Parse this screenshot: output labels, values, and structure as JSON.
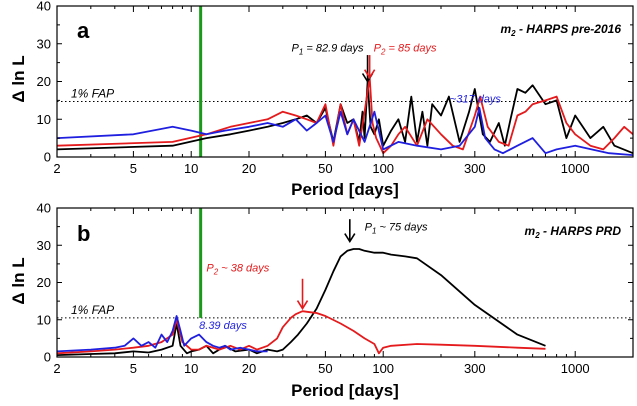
{
  "colors": {
    "black": "#000000",
    "red": "#e41a1c",
    "blue": "#1f1fe0",
    "green": "#1a9a1a",
    "frame": "#000000"
  },
  "chart_data": [
    {
      "panel": "a",
      "type": "line",
      "title": "m_2 - HARPS pre-2016",
      "title_main": "m",
      "title_sub": "2",
      "title_rest": " - HARPS pre-2016",
      "xlabel": "Period [days]",
      "ylabel": "Δ ln L",
      "x_scale": "log",
      "xlim": [
        2,
        2000
      ],
      "ylim": [
        0,
        40
      ],
      "xticks": [
        2,
        5,
        10,
        20,
        50,
        100,
        300,
        1000
      ],
      "yticks": [
        0,
        10,
        20,
        30,
        40
      ],
      "fap": {
        "label": "1% FAP",
        "value": 14.7
      },
      "marker_line": {
        "x": 11.2,
        "y": [
          0,
          40
        ],
        "color": "green"
      },
      "annotations": [
        {
          "prefix": "P",
          "sub": "1",
          "text": " = 82.9 days",
          "x": 82.9,
          "y_text": 28,
          "color": "black",
          "arrow": true,
          "arrow_from": 27,
          "arrow_to": 20
        },
        {
          "prefix": "P",
          "sub": "2",
          "text": " = 85 days",
          "x": 85,
          "y_text": 28,
          "color": "red",
          "arrow": true,
          "arrow_from": 27,
          "arrow_to": 21
        },
        {
          "prefix": "",
          "sub": "",
          "text": "~317 days",
          "x": 317,
          "y_text": 14.5,
          "color": "blue",
          "arrow": false
        }
      ],
      "series": [
        {
          "color": "black",
          "x": [
            2,
            8,
            12,
            16,
            20,
            25,
            30,
            35,
            40,
            45,
            50,
            55,
            60,
            65,
            70,
            75,
            78,
            80,
            82.9,
            86,
            90,
            95,
            100,
            110,
            120,
            130,
            140,
            150,
            160,
            170,
            180,
            200,
            220,
            250,
            280,
            300,
            330,
            360,
            400,
            430,
            460,
            500,
            550,
            600,
            700,
            800,
            900,
            1000,
            1200,
            1400,
            1600,
            2000
          ],
          "y": [
            2,
            3,
            5,
            6,
            7,
            8,
            9,
            10,
            11,
            9,
            13,
            4,
            14,
            9,
            10,
            4,
            12,
            5,
            20,
            8,
            6,
            10,
            3,
            7,
            10,
            4,
            16,
            4,
            12,
            3,
            14,
            11,
            16,
            4,
            12,
            18,
            6,
            4,
            9,
            3,
            10,
            18,
            17,
            19,
            14,
            15,
            5,
            11,
            5,
            8,
            3,
            1
          ]
        },
        {
          "color": "red",
          "x": [
            2,
            8,
            12,
            16,
            20,
            25,
            30,
            35,
            40,
            45,
            50,
            55,
            60,
            65,
            70,
            75,
            80,
            85,
            88,
            92,
            96,
            100,
            110,
            120,
            130,
            150,
            170,
            200,
            230,
            260,
            300,
            320,
            350,
            400,
            450,
            500,
            550,
            600,
            700,
            800,
            900,
            1000,
            1200,
            1400,
            1600,
            1800,
            2000
          ],
          "y": [
            3,
            4,
            6,
            8,
            9,
            10,
            12,
            11,
            10,
            9,
            14,
            3,
            14,
            6,
            10,
            3,
            12,
            21,
            9,
            5,
            3,
            1,
            3,
            6,
            8,
            3,
            10,
            6,
            3,
            2,
            11,
            16,
            8,
            4,
            3,
            11,
            12,
            14,
            15,
            16,
            9,
            6,
            3,
            2,
            5,
            8,
            6
          ]
        },
        {
          "color": "blue",
          "x": [
            2,
            5,
            8,
            10,
            12,
            15,
            20,
            25,
            30,
            35,
            40,
            45,
            50,
            55,
            60,
            65,
            70,
            80,
            90,
            100,
            120,
            150,
            200,
            250,
            300,
            317,
            340,
            380,
            420,
            500,
            600,
            700,
            800,
            1000,
            1500,
            2000
          ],
          "y": [
            5,
            6,
            8,
            7,
            6,
            7,
            8,
            9,
            8,
            10,
            7,
            9,
            11,
            4,
            12,
            6,
            10,
            4,
            12,
            2,
            4,
            3,
            2,
            3,
            8,
            13,
            5,
            2,
            1,
            3,
            5,
            1,
            2,
            3,
            1,
            0.5
          ]
        }
      ]
    },
    {
      "panel": "b",
      "type": "line",
      "title": "m_2 - HARPS PRD",
      "title_main": "m",
      "title_sub": "2",
      "title_rest": " - HARPS PRD",
      "xlabel": "Period [days]",
      "ylabel": "Δ ln L",
      "x_scale": "log",
      "xlim": [
        2,
        2000
      ],
      "ylim": [
        0,
        40
      ],
      "xticks": [
        2,
        5,
        10,
        20,
        50,
        100,
        300,
        1000
      ],
      "yticks": [
        0,
        10,
        20,
        30,
        40
      ],
      "fap": {
        "label": "1% FAP",
        "value": 10.5
      },
      "marker_line": {
        "x": 11.2,
        "y": [
          10.5,
          40
        ],
        "color": "green"
      },
      "annotations": [
        {
          "prefix": "P",
          "sub": "1",
          "text": " ~ 75 days",
          "x": 67,
          "x_text": 80,
          "y_text": 34,
          "color": "black",
          "arrow": true,
          "arrow_from": 37,
          "arrow_to": 31
        },
        {
          "prefix": "P",
          "sub": "2",
          "text": " ~ 38 days",
          "x": 38,
          "x_text": 12,
          "y_text": 23,
          "color": "red",
          "arrow": true,
          "arrow_from": 21,
          "arrow_to": 13
        },
        {
          "prefix": "",
          "sub": "",
          "text": "8.39 days",
          "x": 8.39,
          "x_text": 11,
          "y_text": 7.5,
          "color": "blue",
          "arrow": false
        }
      ],
      "series": [
        {
          "color": "black",
          "x": [
            2,
            3,
            4,
            5,
            6,
            7,
            8,
            8.39,
            8.8,
            9.5,
            10,
            11,
            12,
            13,
            14,
            15,
            17,
            20,
            22,
            25,
            28,
            30,
            33,
            36,
            40,
            45,
            50,
            55,
            60,
            65,
            70,
            75,
            80,
            90,
            100,
            110,
            130,
            150,
            200,
            300,
            500,
            700
          ],
          "y": [
            0.5,
            0.8,
            1,
            1.5,
            1.2,
            2,
            3,
            9,
            3,
            1,
            1.5,
            2,
            3,
            1,
            2,
            3,
            1.5,
            2,
            1,
            2,
            1.5,
            2,
            4,
            6,
            9,
            13,
            18,
            23,
            27,
            28.5,
            29,
            29,
            28.5,
            28,
            28,
            27.5,
            27,
            26.5,
            22,
            14,
            6,
            3
          ]
        },
        {
          "color": "red",
          "x": [
            2,
            3,
            4,
            5,
            6,
            7,
            8,
            8.39,
            9,
            10,
            11,
            12,
            14,
            16,
            18,
            20,
            22,
            25,
            28,
            30,
            33,
            35,
            38,
            42,
            45,
            50,
            60,
            70,
            80,
            90,
            95,
            100,
            110,
            150,
            200,
            300,
            500,
            700
          ],
          "y": [
            1,
            1.5,
            2,
            2.5,
            3,
            4,
            6,
            10,
            4,
            2,
            2,
            3,
            2,
            3,
            2,
            3,
            2,
            3,
            5,
            8,
            10.5,
            11.5,
            12.3,
            12,
            11.8,
            11,
            9,
            7,
            5,
            3.5,
            1,
            2.5,
            3,
            3.5,
            3.3,
            3,
            2.5,
            2.2
          ]
        },
        {
          "color": "blue",
          "x": [
            2,
            3,
            4,
            4.5,
            5,
            5.5,
            6,
            6.5,
            7,
            7.5,
            8,
            8.39,
            8.8,
            9.2,
            10,
            11,
            12,
            13,
            14,
            15,
            16,
            18,
            20,
            22,
            25
          ],
          "y": [
            1.5,
            2,
            2.5,
            3,
            5,
            3,
            4,
            2.5,
            6,
            4,
            7,
            11,
            7,
            3,
            5,
            6,
            4,
            3,
            2.5,
            3,
            2,
            2.5,
            2,
            1.5,
            1.5
          ]
        }
      ]
    }
  ]
}
